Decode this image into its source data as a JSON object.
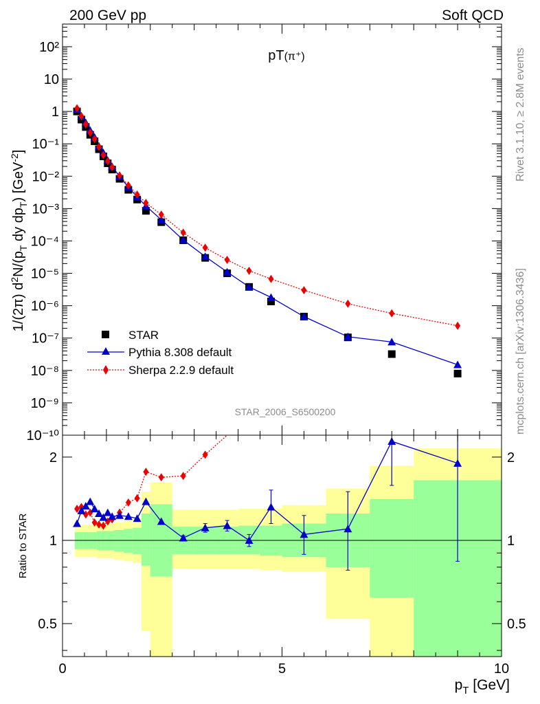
{
  "header": {
    "left": "200 GeV pp",
    "right": "Soft QCD"
  },
  "side_labels": {
    "rivet": "Rivet 3.1.10, ≥ 2.8M events",
    "mcplots": "mcplots.cern.ch [arXiv:1306.3436]"
  },
  "analysis_tag": "STAR_2006_S6500200",
  "chart_data": [
    {
      "type": "scatter",
      "panel": "main",
      "title": "pT(π⁺)",
      "ylabel": "1/(2π) d²N/(p_T dy dp_T) [GeV⁻²]",
      "xlim": [
        0,
        10
      ],
      "ylim": [
        1e-10,
        500
      ],
      "y_scale": "log",
      "y_tick_labels": [
        "10⁻¹⁰",
        "10⁻⁹",
        "10⁻⁸",
        "10⁻⁷",
        "10⁻⁶",
        "10⁻⁵",
        "10⁻⁴",
        "10⁻³",
        "10⁻²",
        "10⁻¹",
        "1",
        "10",
        "10²"
      ],
      "legend": {
        "placement": "bottom-left",
        "entries": [
          "STAR",
          "Pythia 8.308 default",
          "Sherpa 2.2.9 default"
        ]
      },
      "series": [
        {
          "name": "STAR",
          "color": "#000000",
          "marker": "square",
          "x": [
            0.33,
            0.43,
            0.53,
            0.63,
            0.73,
            0.83,
            0.93,
            1.03,
            1.13,
            1.3,
            1.5,
            1.7,
            1.9,
            2.25,
            2.75,
            3.25,
            3.75,
            4.25,
            4.75,
            5.5,
            6.5,
            7.5,
            9.0
          ],
          "y": [
            1.0,
            0.56,
            0.33,
            0.19,
            0.12,
            0.068,
            0.041,
            0.025,
            0.016,
            0.0083,
            0.0038,
            0.0019,
            0.00085,
            0.00038,
            0.000105,
            3e-05,
            1e-05,
            3.8e-06,
            1.35e-06,
            4.6e-07,
            1.05e-07,
            3.2e-08,
            8e-09
          ]
        },
        {
          "name": "Pythia 8.308 default",
          "color": "#0000cc",
          "marker": "triangle",
          "line": "solid",
          "x": [
            0.33,
            0.43,
            0.53,
            0.63,
            0.73,
            0.83,
            0.93,
            1.03,
            1.13,
            1.3,
            1.5,
            1.7,
            1.9,
            2.25,
            2.75,
            3.25,
            3.75,
            4.25,
            4.75,
            5.5,
            6.5,
            7.5,
            9.0
          ],
          "y": [
            1.15,
            0.72,
            0.45,
            0.26,
            0.16,
            0.085,
            0.053,
            0.031,
            0.02,
            0.0098,
            0.0046,
            0.0023,
            0.0012,
            0.00045,
            0.000107,
            3.3e-05,
            1.1e-05,
            3.8e-06,
            1.8e-06,
            4.6e-07,
            1.1e-07,
            7.6e-08,
            1.5e-08
          ]
        },
        {
          "name": "Sherpa 2.2.9 default",
          "color": "#ee0000",
          "marker": "diamond",
          "line": "dotted",
          "x": [
            0.33,
            0.43,
            0.53,
            0.63,
            0.73,
            0.83,
            0.93,
            1.03,
            1.13,
            1.3,
            1.5,
            1.7,
            1.9,
            2.25,
            2.75,
            3.25,
            3.75,
            4.25,
            4.75,
            5.5,
            6.5,
            7.5,
            9.0
          ],
          "y": [
            1.25,
            0.72,
            0.4,
            0.22,
            0.14,
            0.08,
            0.045,
            0.029,
            0.019,
            0.0105,
            0.0052,
            0.0027,
            0.0015,
            0.00065,
            0.00018,
            6.2e-05,
            2.6e-05,
            1.2e-05,
            6.7e-06,
            3e-06,
            1.15e-06,
            5.8e-07,
            2.4e-07
          ]
        }
      ]
    },
    {
      "type": "scatter",
      "panel": "ratio",
      "ylabel": "Ratio to STAR",
      "xlabel": "p_T [GeV]",
      "xlim": [
        0,
        10
      ],
      "ylim": [
        0.38,
        2.4
      ],
      "y_scale": "log",
      "y_ticks": [
        0.5,
        1,
        2
      ],
      "x_ticks": [
        0,
        5,
        10
      ],
      "bin_edges": [
        0.28,
        0.38,
        0.48,
        0.58,
        0.68,
        0.78,
        0.88,
        0.98,
        1.08,
        1.18,
        1.4,
        1.6,
        1.8,
        2.0,
        2.5,
        3.0,
        3.5,
        4.0,
        4.5,
        5.0,
        6.0,
        7.0,
        8.0,
        10.0
      ],
      "band_yellow": {
        "color": "#ffff99",
        "lo": [
          0.87,
          0.87,
          0.87,
          0.87,
          0.87,
          0.86,
          0.86,
          0.86,
          0.86,
          0.85,
          0.84,
          0.83,
          0.47,
          0.34,
          0.79,
          0.79,
          0.79,
          0.79,
          0.78,
          0.77,
          0.52,
          0.3,
          0.3
        ],
        "hi": [
          1.14,
          1.14,
          1.14,
          1.14,
          1.14,
          1.15,
          1.15,
          1.15,
          1.15,
          1.16,
          1.18,
          1.2,
          1.5,
          1.62,
          1.29,
          1.29,
          1.29,
          1.3,
          1.3,
          1.34,
          1.54,
          1.86,
          2.15
        ]
      },
      "band_green": {
        "color": "#99ff99",
        "lo": [
          0.93,
          0.93,
          0.93,
          0.93,
          0.93,
          0.92,
          0.92,
          0.92,
          0.92,
          0.91,
          0.9,
          0.89,
          0.81,
          0.74,
          0.89,
          0.89,
          0.89,
          0.89,
          0.88,
          0.87,
          0.8,
          0.62,
          0.35
        ],
        "hi": [
          1.07,
          1.07,
          1.07,
          1.07,
          1.07,
          1.08,
          1.08,
          1.08,
          1.08,
          1.09,
          1.1,
          1.11,
          1.25,
          1.35,
          1.12,
          1.12,
          1.12,
          1.13,
          1.13,
          1.15,
          1.25,
          1.41,
          1.65
        ]
      },
      "series": [
        {
          "name": "Pythia 8.308 default",
          "color": "#0000cc",
          "marker": "triangle",
          "x": [
            0.33,
            0.43,
            0.53,
            0.63,
            0.73,
            0.83,
            0.93,
            1.03,
            1.13,
            1.3,
            1.5,
            1.7,
            1.9,
            2.25,
            2.75,
            3.25,
            3.75,
            4.25,
            4.75,
            5.5,
            6.5,
            7.5,
            9.0
          ],
          "y": [
            1.15,
            1.28,
            1.33,
            1.38,
            1.3,
            1.25,
            1.21,
            1.26,
            1.22,
            1.23,
            1.22,
            1.2,
            1.38,
            1.17,
            1.02,
            1.11,
            1.13,
            1.0,
            1.32,
            1.05,
            1.1,
            2.28,
            1.9
          ],
          "err_lo": [
            0,
            0,
            0,
            0,
            0,
            0,
            0,
            0,
            0,
            0,
            0,
            0,
            0,
            0,
            0.02,
            0.04,
            0.05,
            0.05,
            0.17,
            0.16,
            0.32,
            0.7,
            1.06
          ],
          "err_hi": [
            0,
            0,
            0,
            0,
            0,
            0,
            0,
            0,
            0,
            0,
            0,
            0,
            0,
            0,
            0.02,
            0.04,
            0.05,
            0.05,
            0.2,
            0.18,
            0.4,
            0,
            0.6
          ]
        },
        {
          "name": "Sherpa 2.2.9 default",
          "color": "#ee0000",
          "marker": "diamond",
          "line": "dotted",
          "x": [
            0.33,
            0.43,
            0.53,
            0.63,
            0.73,
            0.83,
            0.93,
            1.03,
            1.13,
            1.3,
            1.5,
            1.7,
            1.9,
            2.25,
            2.75,
            3.25,
            3.75
          ],
          "y": [
            1.3,
            1.32,
            1.24,
            1.26,
            1.16,
            1.14,
            1.13,
            1.17,
            1.19,
            1.26,
            1.37,
            1.42,
            1.77,
            1.69,
            1.71,
            2.04,
            2.42
          ]
        }
      ]
    }
  ]
}
